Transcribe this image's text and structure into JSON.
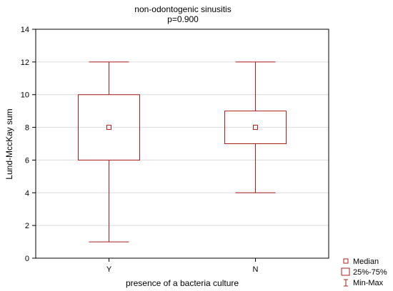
{
  "chart_data": {
    "type": "box",
    "title": "non-odontogenic sinusitis",
    "subtitle": "p=0.900",
    "xlabel": "presence of a bacteria culture",
    "ylabel": "Lund-MccKay sum",
    "ylim": [
      0,
      14
    ],
    "yticks": [
      0,
      2,
      4,
      6,
      8,
      10,
      12,
      14
    ],
    "grid": true,
    "legend_position": "bottom-right",
    "categories": [
      "Y",
      "N"
    ],
    "boxes": [
      {
        "category": "Y",
        "min": 1,
        "q1": 6,
        "median": 8,
        "q3": 10,
        "max": 12
      },
      {
        "category": "N",
        "min": 4,
        "q1": 7,
        "median": 8,
        "q3": 9,
        "max": 12
      }
    ],
    "legend": {
      "median": "Median",
      "box": "25%-75%",
      "whisker": "Min-Max"
    },
    "colors": {
      "box": "#b01c1c",
      "grid": "#dcdcdc",
      "axis": "#000000"
    }
  }
}
